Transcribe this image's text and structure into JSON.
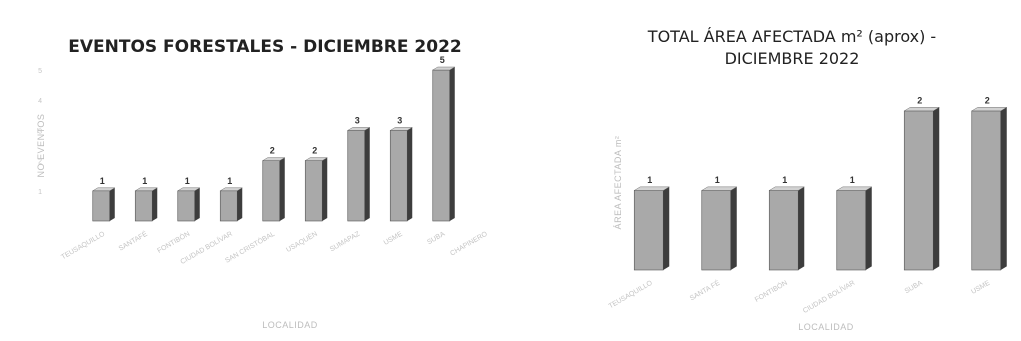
{
  "chart_data": [
    {
      "type": "bar",
      "title": "EVENTOS FORESTALES - DICIEMBRE 2022",
      "xlabel": "LOCALIDAD",
      "ylabel": "NO EVENTOS",
      "ylim": [
        0,
        5
      ],
      "yticks": [
        1,
        2,
        3,
        4,
        5
      ],
      "categories": [
        "TEUSAQUILLO",
        "SANTAFÉ",
        "FONTIBÓN",
        "CIUDAD BOLÍVAR",
        "SAN CRISTÓBAL",
        "USAQUÉN",
        "SUMAPAZ",
        "USME",
        "SUBA",
        "CHAPINERO"
      ],
      "values": [
        1,
        1,
        1,
        1,
        2,
        2,
        3,
        3,
        5,
        0
      ],
      "data_labels": [
        "1",
        "1",
        "1",
        "1",
        "2",
        "2",
        "3",
        "3",
        "5",
        ""
      ],
      "grid": false,
      "legend": "none",
      "bar_color": "#a9a9a9"
    },
    {
      "type": "bar",
      "title": "TOTAL ÁREA AFECTADA m² (aprox) - DICIEMBRE 2022",
      "title_lines": [
        "TOTAL ÁREA AFECTADA m² (aprox) -",
        "DICIEMBRE 2022"
      ],
      "xlabel": "LOCALIDAD",
      "ylabel": "ÁREA AFECTADA m²",
      "ylim": [
        0,
        2.2
      ],
      "categories": [
        "TEUSAQUILLO",
        "SANTA FÉ",
        "FONTIBÓN",
        "CIUDAD BOLÍVAR",
        "SUBA",
        "USME"
      ],
      "values": [
        1,
        1,
        1,
        1,
        2,
        2
      ],
      "data_labels": [
        "1",
        "1",
        "1",
        "1",
        "2",
        "2"
      ],
      "grid": false,
      "legend": "none",
      "bar_color": "#a9a9a9"
    }
  ]
}
